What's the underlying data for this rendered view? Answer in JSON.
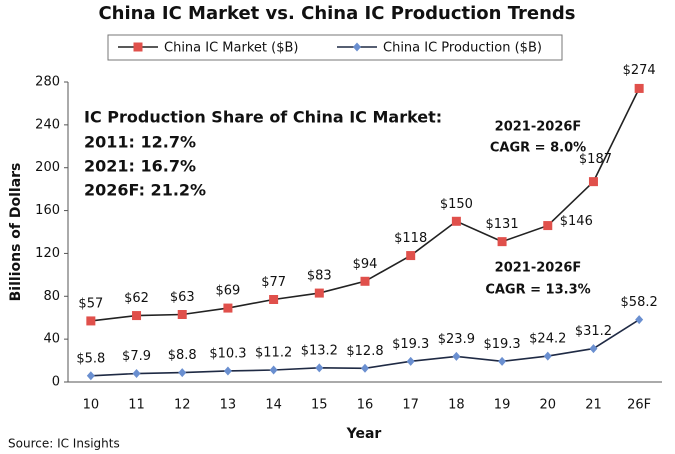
{
  "chart_data": {
    "type": "line",
    "title": "China IC Market vs. China IC Production Trends",
    "x_label": "Year",
    "y_label": "Billions of Dollars",
    "categories": [
      "10",
      "11",
      "12",
      "13",
      "14",
      "15",
      "16",
      "17",
      "18",
      "19",
      "20",
      "21",
      "26F"
    ],
    "series": [
      {
        "name": "China IC Market ($B)",
        "color": "#e0504b",
        "line_color": "#222222",
        "marker": "square",
        "values": [
          57,
          62,
          63,
          69,
          77,
          83,
          94,
          118,
          150,
          131,
          146,
          187,
          274
        ],
        "value_labels": [
          "$57",
          "$62",
          "$63",
          "$69",
          "$77",
          "$83",
          "$94",
          "$118",
          "$150",
          "$131",
          "$146",
          "$187",
          "$274"
        ]
      },
      {
        "name": "China IC Production ($B)",
        "color": "#6a8fd0",
        "line_color": "#1f2a44",
        "marker": "diamond",
        "values": [
          5.8,
          7.9,
          8.8,
          10.3,
          11.2,
          13.2,
          12.8,
          19.3,
          23.9,
          19.3,
          24.2,
          31.2,
          58.2
        ],
        "value_labels": [
          "$5.8",
          "$7.9",
          "$8.8",
          "$10.3",
          "$11.2",
          "$13.2",
          "$12.8",
          "$19.3",
          "$23.9",
          "$19.3",
          "$24.2",
          "$31.2",
          "$58.2"
        ]
      }
    ],
    "ylim": [
      0,
      280
    ],
    "yticks": [
      0,
      40,
      80,
      120,
      160,
      200,
      240,
      280
    ],
    "grid": false,
    "annotations": [
      "IC Production Share of China IC Market:",
      "2011: 12.7%",
      "2021: 16.7%",
      "2026F: 21.2%",
      "2021-2026F",
      "CAGR = 8.0%",
      "2021-2026F",
      "CAGR = 13.3%"
    ],
    "source": "Source: IC Insights"
  }
}
